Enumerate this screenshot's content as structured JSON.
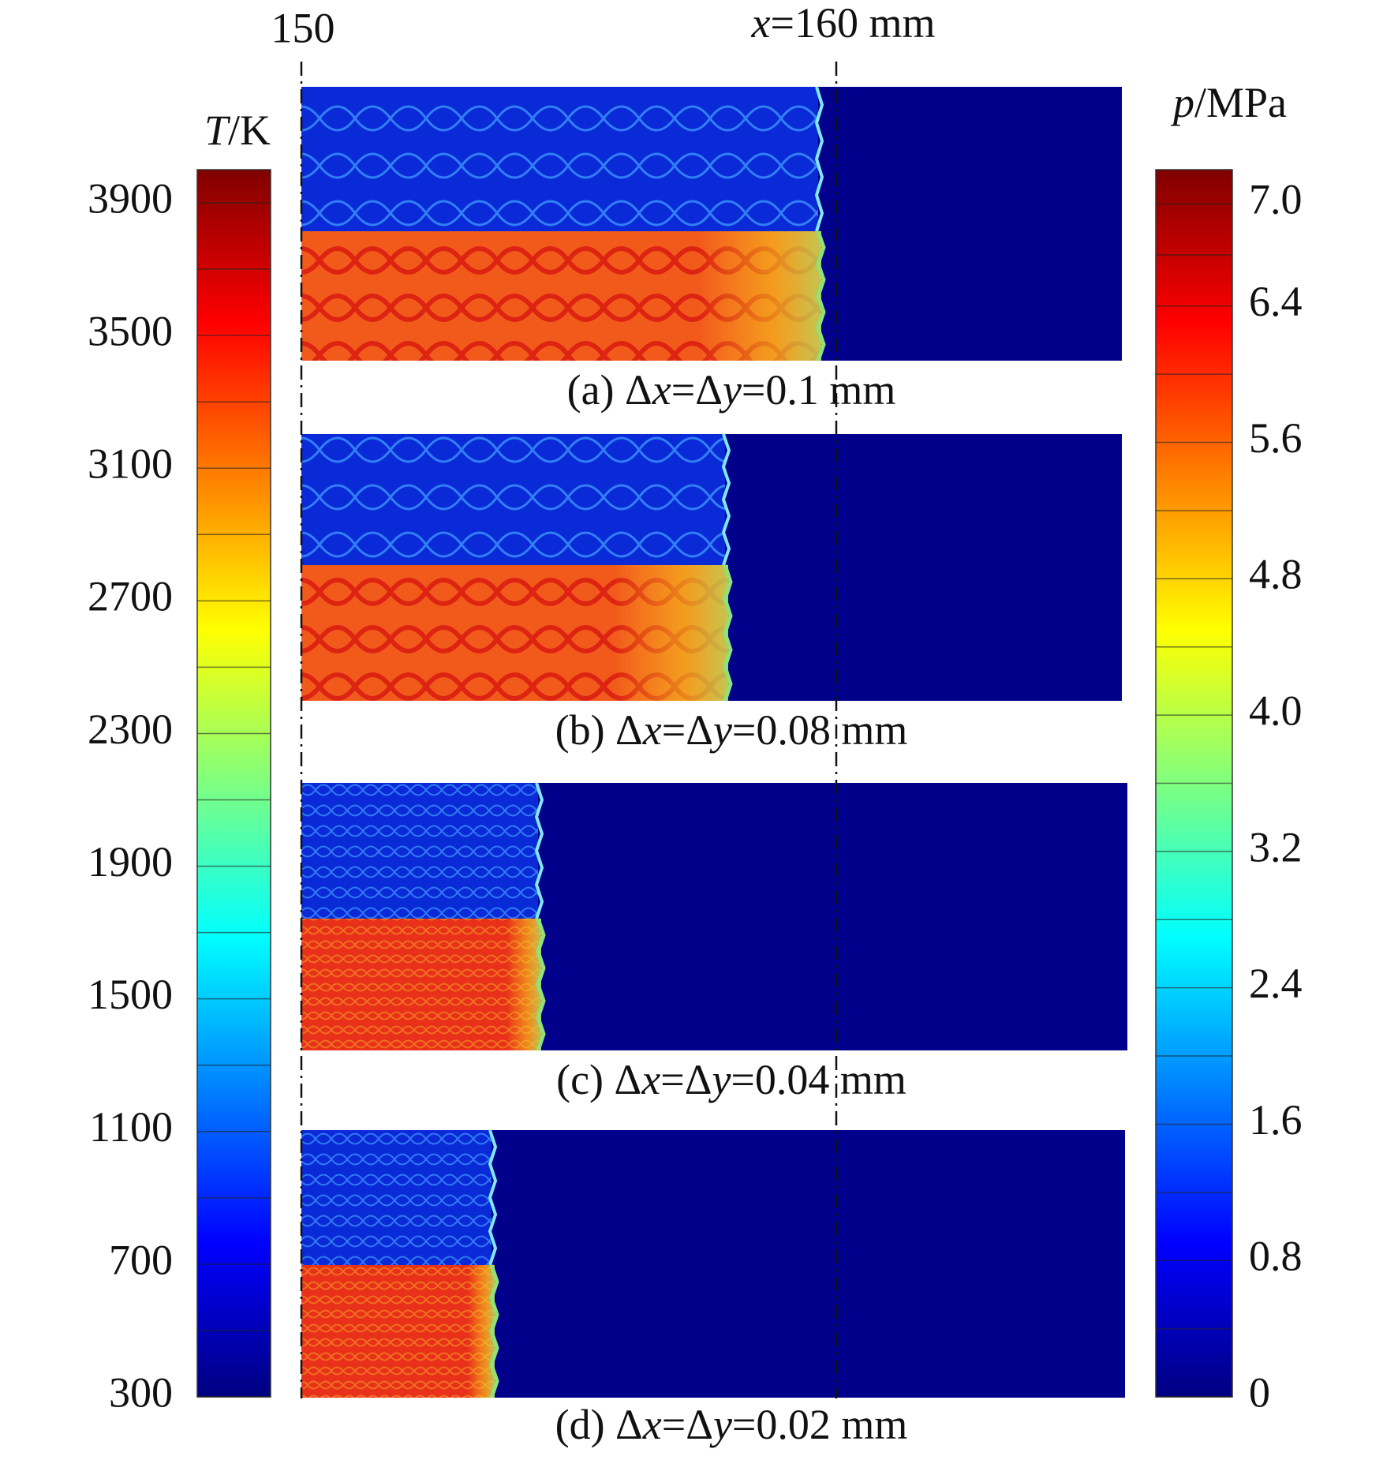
{
  "top_labels": {
    "start": "150",
    "marker": [
      "x",
      "=160 mm"
    ]
  },
  "temperature_bar": {
    "label": [
      "T",
      "/K"
    ],
    "lim": [
      300,
      4000
    ],
    "ticks": [
      3900,
      3500,
      3100,
      2700,
      2300,
      1900,
      1500,
      1100,
      700,
      300
    ]
  },
  "pressure_bar": {
    "label": [
      "p",
      "/MPa"
    ],
    "lim": [
      0,
      7.2
    ],
    "ticks": [
      {
        "value": 7,
        "label": "7.0"
      },
      {
        "value": 6.4,
        "label": "6.4"
      },
      {
        "value": 5.6,
        "label": "5.6"
      },
      {
        "value": 4.8,
        "label": "4.8"
      },
      {
        "value": 4,
        "label": "4.0"
      },
      {
        "value": 3.2,
        "label": "3.2"
      },
      {
        "value": 2.4,
        "label": "2.4"
      },
      {
        "value": 1.6,
        "label": "1.6"
      },
      {
        "value": 0.8,
        "label": "0.8"
      },
      0
    ]
  },
  "panels": [
    {
      "caption": [
        "(a) Δ",
        "x",
        "=Δ",
        "y",
        "=0.1 mm"
      ]
    },
    {
      "caption": [
        "(b) Δ",
        "x",
        "=Δ",
        "y",
        "=0.08 mm"
      ]
    },
    {
      "caption": [
        "(c) Δ",
        "x",
        "=Δ",
        "y",
        "=0.04 mm"
      ]
    },
    {
      "caption": [
        "(d) Δ",
        "x",
        "=Δ",
        "y",
        "=0.02 mm"
      ]
    }
  ]
}
